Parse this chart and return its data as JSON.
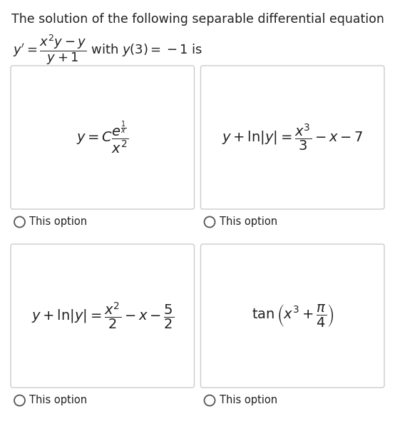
{
  "title_line1": "The solution of the following separable differential equation",
  "title_line2_part1": "$y' = \\dfrac{x^2y-y}{y+1}$",
  "title_line2_part2": " with $y(3) = -1$ is",
  "options": [
    "$y = C\\dfrac{e^{\\frac{1}{x}}}{x^2}$",
    "$y + \\ln|y| = \\dfrac{x^3}{3} - x - 7$",
    "$y + \\ln|y| = \\dfrac{x^2}{2} - x - \\dfrac{5}{2}$",
    "$\\tan\\left(x^3 + \\dfrac{\\pi}{4}\\right)$"
  ],
  "option_label": "This option",
  "bg_color": "#ffffff",
  "box_bg_color": "#ffffff",
  "box_edge_color": "#cccccc",
  "text_color": "#222222",
  "radio_color": "#555555",
  "title_fontsize": 12.5,
  "subtitle_fontsize": 13,
  "option_fontsize": 14,
  "label_fontsize": 10.5,
  "fig_width": 5.54,
  "fig_height": 5.94,
  "dpi": 100
}
